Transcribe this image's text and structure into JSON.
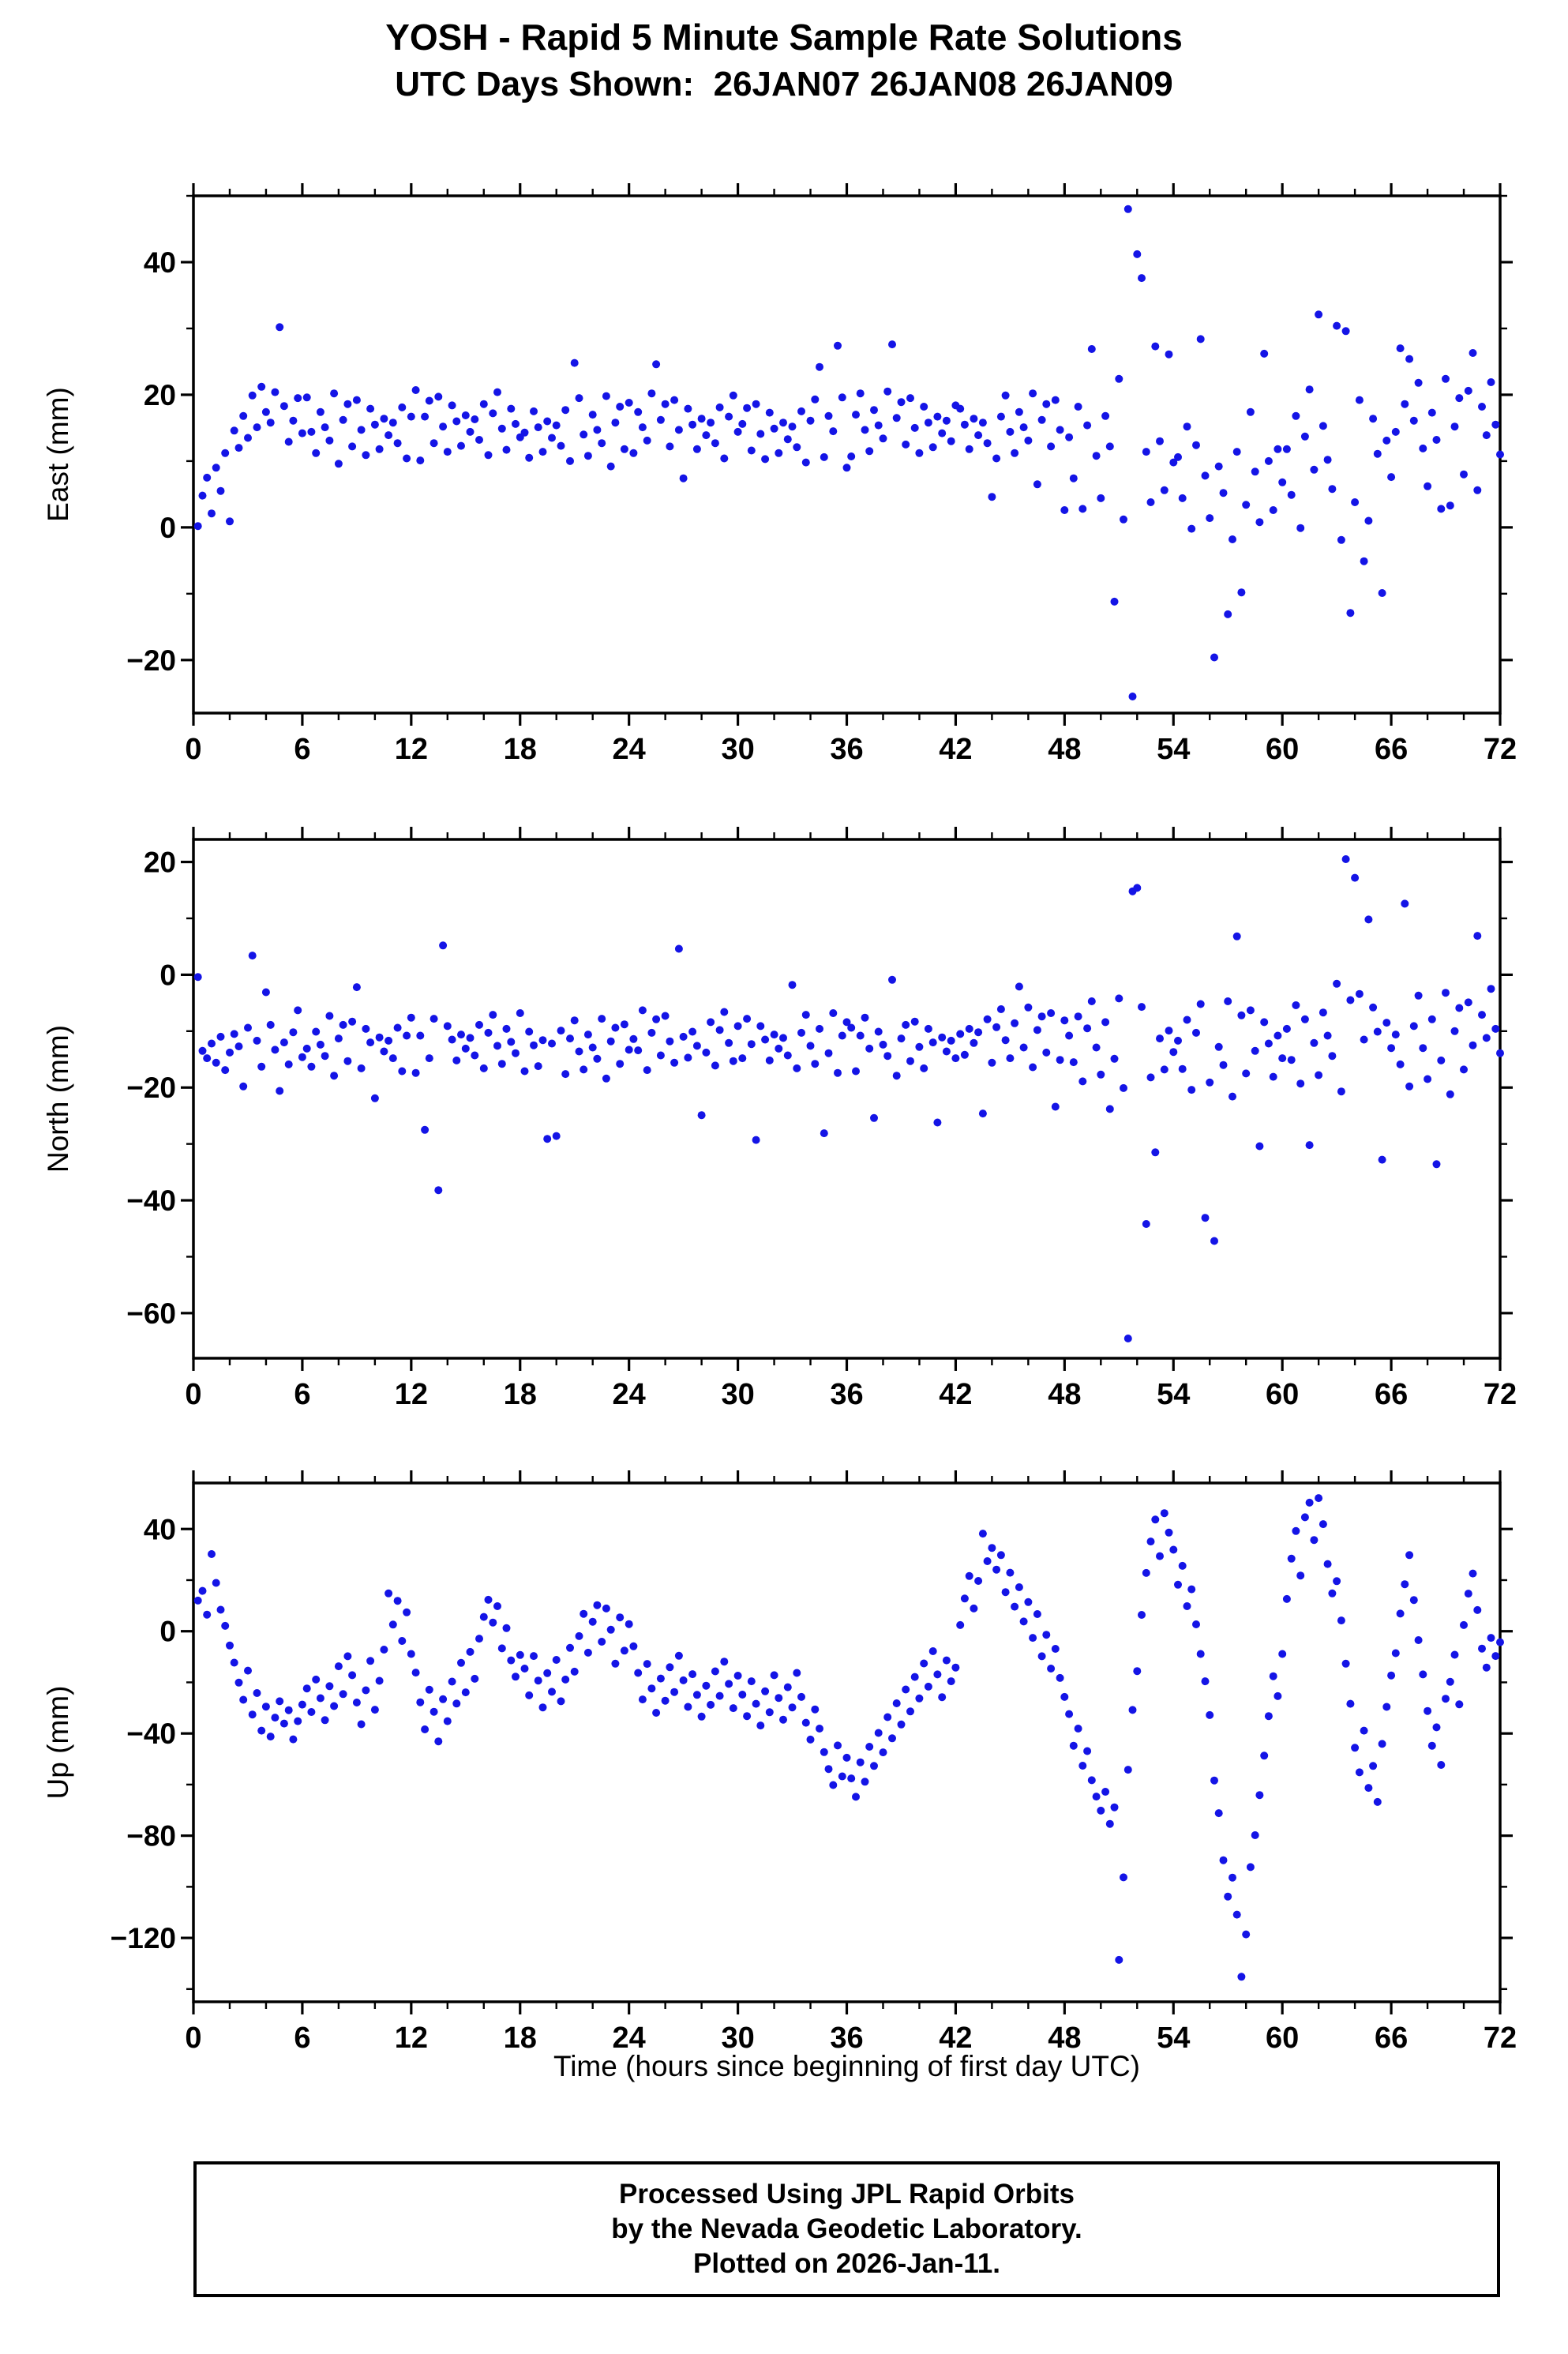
{
  "title": "YOSH - Rapid 5 Minute Sample Rate Solutions",
  "subtitle": "UTC Days Shown:  26JAN07 26JAN08 26JAN09",
  "xlabel": "Time (hours since beginning of first day UTC)",
  "footer": {
    "lines": [
      "Processed Using JPL Rapid Orbits",
      "by the Nevada Geodetic Laboratory.",
      "Plotted on 2026-Jan-11."
    ]
  },
  "chart_data": {
    "type": "scatter",
    "marker_color": "#1414e6",
    "x_start": 0.25,
    "x_step": 0.25,
    "xlim": [
      0,
      72
    ],
    "xticks": [
      0,
      6,
      12,
      18,
      24,
      30,
      36,
      42,
      48,
      54,
      60,
      66,
      72
    ],
    "x_minor_step": 2,
    "panels": [
      {
        "ylabel": "East (mm)",
        "ylim": [
          -28,
          50
        ],
        "yticks": [
          -20,
          0,
          20,
          40
        ],
        "y_minor_step": 10,
        "y": [
          0.2,
          4.8,
          7.5,
          2.1,
          9.0,
          5.5,
          11.2,
          0.9,
          14.6,
          12.0,
          16.8,
          13.5,
          19.9,
          15.1,
          21.2,
          17.4,
          15.8,
          20.4,
          30.2,
          18.3,
          12.9,
          16.1,
          19.5,
          14.2,
          19.6,
          14.4,
          11.2,
          17.4,
          15.1,
          13.1,
          20.2,
          9.6,
          16.2,
          18.6,
          12.2,
          19.2,
          14.7,
          10.9,
          17.9,
          15.5,
          11.8,
          16.4,
          13.9,
          15.8,
          12.7,
          18.1,
          10.4,
          16.7,
          20.7,
          10.1,
          16.7,
          19.1,
          12.7,
          19.7,
          15.2,
          11.4,
          18.4,
          16.0,
          12.3,
          16.9,
          14.4,
          16.3,
          13.2,
          18.6,
          10.9,
          17.2,
          20.4,
          14.9,
          11.7,
          17.9,
          15.6,
          13.6,
          14.3,
          10.5,
          17.5,
          15.1,
          11.4,
          16.0,
          13.5,
          15.4,
          12.3,
          17.7,
          10.0,
          24.8,
          19.5,
          14.0,
          10.8,
          17.0,
          14.7,
          12.7,
          19.8,
          9.2,
          15.8,
          18.2,
          11.8,
          18.8,
          11.2,
          17.4,
          15.1,
          13.1,
          20.2,
          24.6,
          16.2,
          18.6,
          12.2,
          19.2,
          14.7,
          7.4,
          17.9,
          15.5,
          11.8,
          16.4,
          13.9,
          15.8,
          12.7,
          18.1,
          10.4,
          16.7,
          19.9,
          14.4,
          15.6,
          18.0,
          11.6,
          18.6,
          14.1,
          10.3,
          17.3,
          14.9,
          11.2,
          15.8,
          13.3,
          15.2,
          12.1,
          17.5,
          9.8,
          16.1,
          19.3,
          24.2,
          10.6,
          16.8,
          14.5,
          27.4,
          19.6,
          9.0,
          10.7,
          17.0,
          20.2,
          14.7,
          11.5,
          17.7,
          15.4,
          13.4,
          20.5,
          27.6,
          16.5,
          18.9,
          12.5,
          19.5,
          15.0,
          11.2,
          18.2,
          15.8,
          12.1,
          16.7,
          14.2,
          16.1,
          13.0,
          18.4,
          17.9,
          15.5,
          11.8,
          16.4,
          13.9,
          15.8,
          12.7,
          4.6,
          10.4,
          16.7,
          19.9,
          14.4,
          11.2,
          17.4,
          15.1,
          13.1,
          20.2,
          6.5,
          16.2,
          18.6,
          12.2,
          19.2,
          14.7,
          2.6,
          13.6,
          7.4,
          18.2,
          2.8,
          15.4,
          26.9,
          10.8,
          4.4,
          16.8,
          12.2,
          -11.2,
          22.4,
          1.2,
          48.0,
          -25.5,
          41.2,
          37.6,
          11.4,
          3.8,
          27.3,
          13.0,
          5.6,
          26.1,
          9.8,
          10.6,
          4.4,
          15.2,
          -0.2,
          12.4,
          28.4,
          7.8,
          1.4,
          -19.6,
          9.2,
          5.2,
          -13.1,
          -1.8,
          11.4,
          -9.8,
          3.4,
          17.4,
          8.4,
          0.8,
          26.2,
          10.0,
          2.6,
          11.8,
          6.8,
          11.8,
          4.9,
          16.8,
          -0.1,
          13.7,
          20.8,
          8.7,
          32.1,
          15.3,
          10.2,
          5.8,
          30.4,
          -1.9,
          29.6,
          -12.9,
          3.8,
          19.2,
          -5.1,
          1.0,
          16.4,
          11.1,
          -9.9,
          13.1,
          7.6,
          14.4,
          27.0,
          18.6,
          25.4,
          16.1,
          21.8,
          11.9,
          6.2,
          17.3,
          13.2,
          2.8,
          22.4,
          3.3,
          15.2,
          19.5,
          8.0,
          20.6,
          26.3,
          5.6,
          18.2,
          13.9,
          21.9,
          15.5,
          11.0
        ]
      },
      {
        "ylabel": "North (mm)",
        "ylim": [
          -68,
          24
        ],
        "yticks": [
          -60,
          -40,
          -20,
          0,
          20
        ],
        "y_minor_step": 10,
        "y": [
          -0.4,
          -13.5,
          -14.8,
          -12.2,
          -15.6,
          -11.0,
          -16.9,
          -13.8,
          -10.5,
          -12.7,
          -19.8,
          -9.4,
          3.4,
          -11.7,
          -16.3,
          -3.1,
          -8.9,
          -13.3,
          -20.6,
          -12.0,
          -15.9,
          -10.2,
          -6.3,
          -14.6,
          -13.1,
          -16.3,
          -10.1,
          -12.4,
          -14.4,
          -7.3,
          -17.9,
          -11.3,
          -8.9,
          -15.3,
          -8.3,
          -2.2,
          -16.6,
          -9.6,
          -12.0,
          -21.9,
          -11.1,
          -13.6,
          -11.7,
          -14.8,
          -9.4,
          -17.1,
          -10.8,
          -7.6,
          -17.4,
          -10.8,
          -27.5,
          -14.8,
          -7.8,
          -38.2,
          5.2,
          -9.1,
          -11.5,
          -15.2,
          -10.6,
          -13.1,
          -11.2,
          -14.3,
          -8.9,
          -16.6,
          -10.3,
          -7.1,
          -12.6,
          -15.8,
          -9.6,
          -11.9,
          -13.9,
          -6.8,
          -17.1,
          -10.1,
          -12.5,
          -16.2,
          -11.6,
          -29.1,
          -12.2,
          -28.6,
          -9.9,
          -17.6,
          -11.3,
          -8.1,
          -13.6,
          -16.8,
          -10.6,
          -12.9,
          -14.9,
          -7.8,
          -18.4,
          -11.8,
          -9.4,
          -15.8,
          -8.8,
          -13.3,
          -11.4,
          -13.4,
          -6.3,
          -16.9,
          -10.3,
          -7.9,
          -14.3,
          -7.3,
          -11.8,
          -15.6,
          4.6,
          -11.0,
          -14.7,
          -10.1,
          -12.6,
          -24.9,
          -13.8,
          -8.4,
          -16.1,
          -9.8,
          -6.6,
          -12.1,
          -15.3,
          -9.1,
          -14.8,
          -7.8,
          -12.3,
          -29.3,
          -9.1,
          -11.5,
          -15.2,
          -10.6,
          -13.1,
          -11.2,
          -14.3,
          -1.8,
          -16.6,
          -10.3,
          -7.1,
          -12.6,
          -15.8,
          -9.6,
          -28.1,
          -13.9,
          -6.8,
          -17.4,
          -10.8,
          -8.4,
          -9.4,
          -17.1,
          -10.8,
          -7.6,
          -13.1,
          -25.4,
          -10.1,
          -12.4,
          -14.4,
          -0.9,
          -17.9,
          -11.3,
          -8.9,
          -15.3,
          -8.3,
          -12.8,
          -16.6,
          -9.6,
          -12.0,
          -26.2,
          -11.1,
          -13.6,
          -11.7,
          -14.8,
          -10.5,
          -14.2,
          -9.6,
          -12.1,
          -10.2,
          -24.6,
          -7.9,
          -15.6,
          -9.3,
          -6.1,
          -11.6,
          -14.8,
          -8.6,
          -2.1,
          -12.9,
          -5.8,
          -16.4,
          -9.8,
          -7.4,
          -13.8,
          -6.8,
          -23.4,
          -15.1,
          -8.1,
          -10.8,
          -15.5,
          -7.4,
          -18.9,
          -9.5,
          -4.7,
          -12.9,
          -17.7,
          -8.4,
          -23.8,
          -14.9,
          -4.2,
          -20.1,
          -64.5,
          14.8,
          15.4,
          -5.7,
          -44.2,
          -18.2,
          -31.5,
          -11.3,
          -16.8,
          -9.9,
          -13.7,
          -11.7,
          -16.7,
          -8.0,
          -20.4,
          -10.3,
          -5.2,
          -43.1,
          -19.1,
          -47.2,
          -12.8,
          -16.0,
          -4.7,
          -21.6,
          6.8,
          -7.2,
          -17.5,
          -6.3,
          -13.5,
          -30.4,
          -8.4,
          -12.2,
          -18.1,
          -10.8,
          -14.8,
          -9.6,
          -15.1,
          -5.4,
          -19.3,
          -7.9,
          -30.2,
          -12.1,
          -17.8,
          -6.7,
          -10.8,
          -14.4,
          -1.6,
          -20.7,
          20.5,
          -4.5,
          17.2,
          -3.4,
          -11.5,
          9.8,
          -5.8,
          -10.1,
          -32.8,
          -8.5,
          -13.0,
          -10.6,
          -15.9,
          12.6,
          -19.8,
          -9.1,
          -3.7,
          -13.0,
          -18.5,
          -7.9,
          -33.6,
          -15.2,
          -3.2,
          -21.2,
          -10.0,
          -5.9,
          -16.8,
          -4.9,
          -12.5,
          6.9,
          -7.1,
          -11.2,
          -2.5,
          -9.6,
          -13.9
        ]
      },
      {
        "ylabel": "Up (mm)",
        "ylim": [
          -145,
          58
        ],
        "yticks": [
          -120,
          -80,
          -40,
          0,
          40
        ],
        "y_minor_step": 20,
        "y": [
          12.0,
          15.8,
          6.5,
          30.2,
          18.9,
          8.4,
          2.1,
          -5.6,
          -12.3,
          -20.1,
          -26.8,
          -15.4,
          -32.6,
          -24.2,
          -38.9,
          -29.5,
          -41.2,
          -33.8,
          -27.4,
          -36.1,
          -30.9,
          -42.3,
          -35.2,
          -28.7,
          -22.4,
          -31.6,
          -18.9,
          -26.2,
          -34.8,
          -21.5,
          -29.3,
          -13.7,
          -24.6,
          -9.8,
          -17.2,
          -27.9,
          -36.4,
          -23.1,
          -11.6,
          -30.7,
          -19.4,
          -7.2,
          14.8,
          2.6,
          11.9,
          -3.8,
          7.4,
          -8.9,
          -16.2,
          -27.8,
          -38.4,
          -22.9,
          -31.5,
          -43.1,
          -26.6,
          -35.2,
          -19.7,
          -28.3,
          -12.4,
          -23.9,
          -8.1,
          -18.6,
          -2.9,
          5.6,
          12.3,
          3.4,
          9.8,
          -6.7,
          1.2,
          -11.4,
          -17.8,
          -9.3,
          -14.6,
          -25.1,
          -9.7,
          -19.3,
          -29.8,
          -16.4,
          -23.7,
          -11.2,
          -27.4,
          -18.9,
          -6.5,
          -15.8,
          -1.9,
          6.8,
          -8.4,
          3.7,
          10.2,
          -4.1,
          8.9,
          0.6,
          -12.7,
          5.4,
          -7.6,
          2.8,
          -5.9,
          -16.3,
          -26.7,
          -12.8,
          -22.4,
          -31.9,
          -18.5,
          -27.2,
          -14.1,
          -23.8,
          -9.6,
          -19.2,
          -29.6,
          -16.8,
          -24.9,
          -33.4,
          -21.3,
          -28.8,
          -15.7,
          -25.3,
          -11.9,
          -20.6,
          -30.1,
          -17.4,
          -24.8,
          -33.2,
          -19.6,
          -28.4,
          -36.9,
          -23.5,
          -31.7,
          -17.2,
          -26.1,
          -34.6,
          -21.9,
          -29.8,
          -16.3,
          -25.7,
          -35.8,
          -42.4,
          -30.6,
          -38.1,
          -47.3,
          -53.9,
          -60.2,
          -44.7,
          -56.8,
          -49.5,
          -57.6,
          -64.8,
          -51.3,
          -58.9,
          -45.2,
          -52.7,
          -39.8,
          -47.4,
          -33.6,
          -41.9,
          -28.2,
          -36.5,
          -22.8,
          -31.4,
          -17.9,
          -26.3,
          -12.6,
          -21.7,
          -7.8,
          -16.9,
          -25.8,
          -11.4,
          -19.6,
          -14.2,
          2.4,
          12.8,
          21.6,
          8.9,
          19.7,
          38.2,
          27.4,
          32.6,
          24.1,
          29.8,
          15.3,
          22.9,
          9.6,
          17.2,
          3.8,
          11.4,
          -2.6,
          6.7,
          -9.8,
          -1.4,
          -14.6,
          -6.9,
          -18.3,
          -25.7,
          -32.4,
          -44.8,
          -38.1,
          -52.6,
          -46.9,
          -58.3,
          -64.7,
          -70.2,
          -62.8,
          -75.4,
          -68.9,
          -128.6,
          -96.3,
          -54.2,
          -30.8,
          -15.6,
          6.4,
          22.8,
          35.1,
          43.7,
          29.4,
          46.2,
          38.6,
          31.9,
          18.2,
          25.6,
          9.8,
          16.4,
          2.7,
          -8.9,
          -19.6,
          -32.8,
          -58.4,
          -71.2,
          -89.6,
          -103.8,
          -96.4,
          -110.9,
          -135.2,
          -118.6,
          -92.3,
          -79.8,
          -64.1,
          -48.7,
          -33.2,
          -17.6,
          -25.4,
          -8.9,
          12.6,
          28.4,
          39.2,
          21.8,
          44.6,
          50.3,
          35.7,
          52.1,
          41.9,
          26.3,
          14.8,
          19.6,
          4.2,
          -12.7,
          -28.4,
          -45.6,
          -55.2,
          -38.9,
          -61.3,
          -52.7,
          -66.8,
          -44.1,
          -29.6,
          -17.3,
          -8.6,
          6.9,
          18.4,
          29.8,
          12.2,
          -3.5,
          -16.9,
          -31.2,
          -44.8,
          -37.6,
          -52.3,
          -26.4,
          -19.8,
          -9.2,
          -28.6,
          2.4,
          14.7,
          22.6,
          8.3,
          -6.8,
          -14.2,
          -2.6,
          -9.7,
          -4.3
        ]
      }
    ]
  }
}
